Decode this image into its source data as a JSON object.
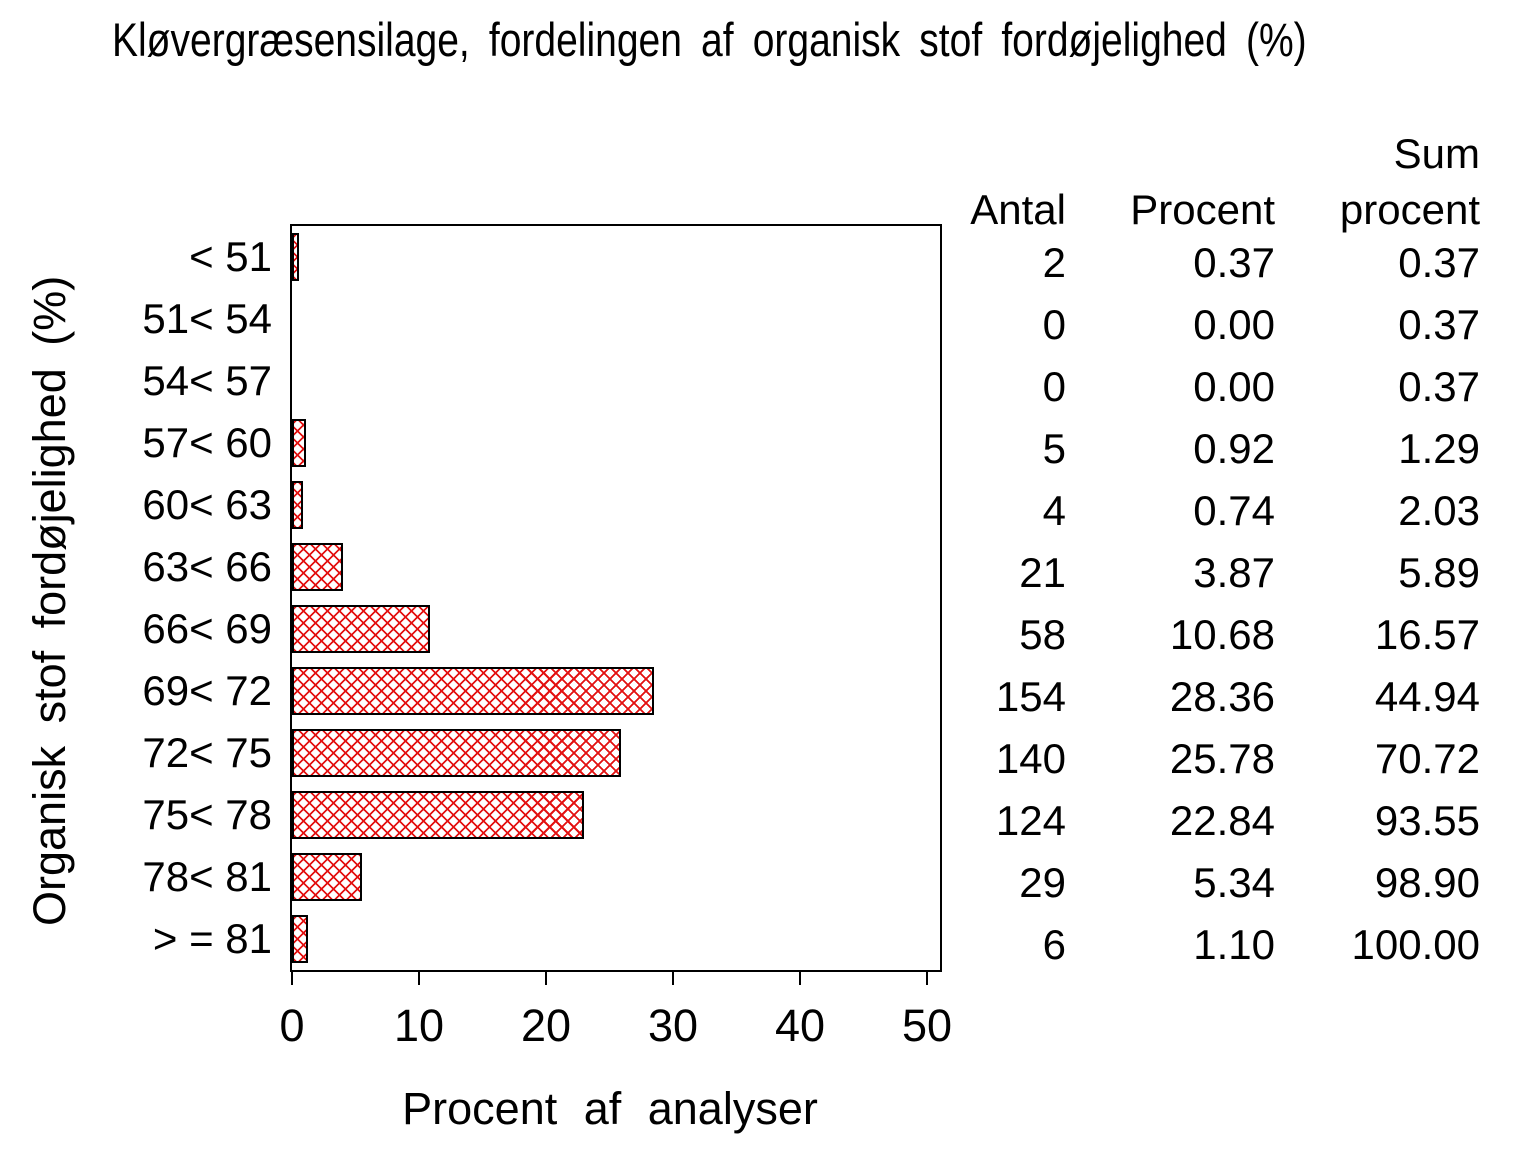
{
  "title": "Kløvergræsensilage,  fordelingen  af  organisk  stof  fordøjelighed  (%)",
  "axes": {
    "x_label": "Procent af analyser",
    "y_label": "Organisk stof fordøjelighed (%)"
  },
  "table": {
    "headers": {
      "antal": "Antal",
      "procent": "Procent",
      "sum_top": "Sum",
      "sum_bottom": "procent"
    }
  },
  "colors": {
    "background": "#ffffff",
    "text": "#000000",
    "axis": "#000000",
    "bar_border": "#000000",
    "bar_hatch_red": "#e31212"
  },
  "chart_data": {
    "type": "bar",
    "orientation": "horizontal",
    "title": "Kløvergræsensilage, fordelingen af organisk stof fordøjelighed (%)",
    "xlabel": "Procent af analyser",
    "ylabel": "Organisk stof fordøjelighed (%)",
    "xlim": [
      0,
      50
    ],
    "x_ticks": [
      0,
      10,
      20,
      30,
      40,
      50
    ],
    "grid": false,
    "legend_position": "none",
    "bar_style": "red diagonal crosshatch, black outline",
    "categories": [
      "< 51",
      "51< 54",
      "54< 57",
      "57< 60",
      "60< 63",
      "63< 66",
      "66< 69",
      "69< 72",
      "72< 75",
      "75< 78",
      "78< 81",
      "> = 81"
    ],
    "bar_value_series": "Procent",
    "series": [
      {
        "name": "Antal",
        "values": [
          2,
          0,
          0,
          5,
          4,
          21,
          58,
          154,
          140,
          124,
          29,
          6
        ]
      },
      {
        "name": "Procent",
        "values": [
          0.37,
          0.0,
          0.0,
          0.92,
          0.74,
          3.87,
          10.68,
          28.36,
          25.78,
          22.84,
          5.34,
          1.1
        ]
      },
      {
        "name": "Sum procent",
        "values": [
          0.37,
          0.37,
          0.37,
          1.29,
          2.03,
          5.89,
          16.57,
          44.94,
          70.72,
          93.55,
          98.9,
          100.0
        ]
      }
    ]
  }
}
